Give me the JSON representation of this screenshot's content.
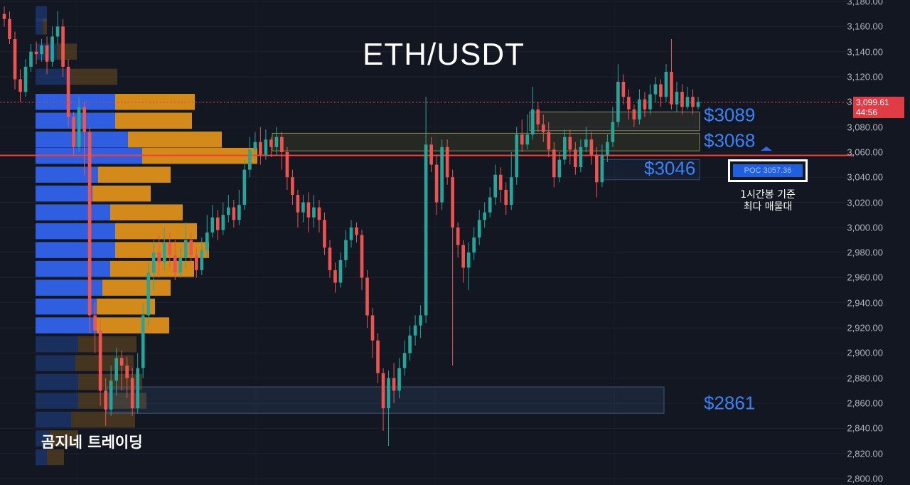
{
  "chart_data": {
    "type": "candlestick",
    "title": "ETH/USDT",
    "y_axis": {
      "ticks": [
        "3,180.00",
        "3,160.00",
        "3,140.00",
        "3,120.00",
        "3,100.00",
        "3,080.00",
        "3,060.00",
        "3,040.00",
        "3,020.00",
        "3,000.00",
        "2,980.00",
        "2,960.00",
        "2,940.00",
        "2,920.00",
        "2,900.00",
        "2,880.00",
        "2,860.00",
        "2,840.00",
        "2,820.00",
        "2,800.00"
      ],
      "range": [
        2800,
        3180
      ]
    },
    "last_price": "3,099.61",
    "countdown": "44:56",
    "poc": {
      "label": "POC",
      "value": "3057.36"
    },
    "levels": [
      {
        "label": "$3089",
        "value": 3089
      },
      {
        "label": "$3068",
        "value": 3068
      },
      {
        "label": "$3046",
        "value": 3046
      },
      {
        "label": "$2861",
        "value": 2861
      }
    ],
    "annotation": "1시간봉 기준\n최다 매물대",
    "watermark": "곰지네 트레이딩",
    "candles": [
      [
        3170,
        3166,
        3176,
        3160
      ],
      [
        3166,
        3150,
        3172,
        3146
      ],
      [
        3150,
        3118,
        3156,
        3110
      ],
      [
        3118,
        3108,
        3126,
        3100
      ],
      [
        3108,
        3128,
        3134,
        3104
      ],
      [
        3128,
        3140,
        3146,
        3124
      ],
      [
        3140,
        3138,
        3148,
        3130
      ],
      [
        3138,
        3145,
        3150,
        3132
      ],
      [
        3145,
        3132,
        3152,
        3122
      ],
      [
        3132,
        3152,
        3160,
        3128
      ],
      [
        3152,
        3160,
        3172,
        3146
      ],
      [
        3160,
        3128,
        3166,
        3120
      ],
      [
        3128,
        3088,
        3134,
        3080
      ],
      [
        3088,
        3064,
        3092,
        3058
      ],
      [
        3064,
        3096,
        3104,
        3060
      ],
      [
        3096,
        3076,
        3100,
        3042
      ],
      [
        3076,
        2930,
        3080,
        2916
      ],
      [
        2930,
        2918,
        2940,
        2900
      ],
      [
        2918,
        2870,
        2926,
        2858
      ],
      [
        2870,
        2855,
        2880,
        2842
      ],
      [
        2855,
        2878,
        2890,
        2850
      ],
      [
        2878,
        2896,
        2904,
        2866
      ],
      [
        2896,
        2890,
        2902,
        2870
      ],
      [
        2890,
        2880,
        2897,
        2864
      ],
      [
        2880,
        2856,
        2888,
        2850
      ],
      [
        2856,
        2888,
        2900,
        2852
      ],
      [
        2888,
        2930,
        2940,
        2880
      ],
      [
        2930,
        2964,
        2972,
        2922
      ],
      [
        2964,
        2980,
        2990,
        2950
      ],
      [
        2980,
        2972,
        2994,
        2960
      ],
      [
        2972,
        2988,
        3000,
        2966
      ],
      [
        2988,
        2978,
        2996,
        2968
      ],
      [
        2978,
        2964,
        2990,
        2958
      ],
      [
        2964,
        2976,
        2984,
        2960
      ],
      [
        2976,
        2990,
        3004,
        2968
      ],
      [
        2990,
        2978,
        2996,
        2970
      ],
      [
        2978,
        2966,
        2984,
        2960
      ],
      [
        2966,
        2982,
        2992,
        2962
      ],
      [
        2982,
        2996,
        3010,
        2976
      ],
      [
        2996,
        3008,
        3018,
        2992
      ],
      [
        3008,
        2998,
        3014,
        2990
      ],
      [
        2998,
        3010,
        3020,
        2994
      ],
      [
        3010,
        3016,
        3026,
        3004
      ],
      [
        3016,
        3006,
        3022,
        3000
      ],
      [
        3006,
        3018,
        3030,
        3002
      ],
      [
        3018,
        3046,
        3054,
        3014
      ],
      [
        3046,
        3062,
        3072,
        3040
      ],
      [
        3062,
        3068,
        3076,
        3054
      ],
      [
        3068,
        3058,
        3080,
        3050
      ],
      [
        3058,
        3070,
        3078,
        3054
      ],
      [
        3070,
        3064,
        3072,
        3056
      ],
      [
        3064,
        3072,
        3080,
        3058
      ],
      [
        3072,
        3060,
        3076,
        3046
      ],
      [
        3060,
        3040,
        3064,
        3030
      ],
      [
        3040,
        3026,
        3046,
        3018
      ],
      [
        3026,
        3012,
        3030,
        3000
      ],
      [
        3012,
        3020,
        3026,
        3004
      ],
      [
        3020,
        3008,
        3028,
        2996
      ],
      [
        3008,
        3016,
        3026,
        3000
      ],
      [
        3016,
        3006,
        3022,
        2996
      ],
      [
        3006,
        2984,
        3012,
        2978
      ],
      [
        2984,
        2966,
        2990,
        2960
      ],
      [
        2966,
        2956,
        2972,
        2948
      ],
      [
        2956,
        2974,
        2980,
        2952
      ],
      [
        2974,
        2990,
        2998,
        2968
      ],
      [
        2990,
        3000,
        3006,
        2984
      ],
      [
        3000,
        2994,
        3004,
        2988
      ],
      [
        2994,
        2960,
        2998,
        2950
      ],
      [
        2960,
        2930,
        2966,
        2920
      ],
      [
        2930,
        2910,
        2936,
        2896
      ],
      [
        2910,
        2884,
        2916,
        2876
      ],
      [
        2884,
        2856,
        2888,
        2838
      ],
      [
        2856,
        2880,
        2886,
        2826
      ],
      [
        2880,
        2870,
        2892,
        2860
      ],
      [
        2870,
        2888,
        2896,
        2864
      ],
      [
        2888,
        2900,
        2910,
        2882
      ],
      [
        2900,
        2914,
        2922,
        2894
      ],
      [
        2914,
        2922,
        2930,
        2906
      ],
      [
        2922,
        2930,
        2938,
        2912
      ],
      [
        2930,
        3066,
        3104,
        2924
      ],
      [
        3066,
        3050,
        3072,
        3044
      ],
      [
        3050,
        3020,
        3058,
        3010
      ],
      [
        3020,
        3064,
        3070,
        3014
      ],
      [
        3064,
        3040,
        3070,
        3034
      ],
      [
        3040,
        3000,
        3046,
        2890
      ],
      [
        3000,
        2986,
        3004,
        2976
      ],
      [
        2986,
        2968,
        2990,
        2956
      ],
      [
        2968,
        2980,
        2988,
        2950
      ],
      [
        2980,
        2992,
        3000,
        2974
      ],
      [
        2992,
        3006,
        3014,
        2986
      ],
      [
        3006,
        3012,
        3020,
        3000
      ],
      [
        3012,
        3024,
        3032,
        3008
      ],
      [
        3024,
        3042,
        3050,
        3018
      ],
      [
        3042,
        3030,
        3048,
        3020
      ],
      [
        3030,
        3018,
        3036,
        3010
      ],
      [
        3018,
        3040,
        3060,
        3014
      ],
      [
        3040,
        3074,
        3080,
        3034
      ],
      [
        3074,
        3066,
        3086,
        3060
      ],
      [
        3066,
        3074,
        3090,
        3062
      ],
      [
        3074,
        3094,
        3112,
        3070
      ],
      [
        3094,
        3082,
        3100,
        3076
      ],
      [
        3082,
        3076,
        3090,
        3068
      ],
      [
        3076,
        3062,
        3084,
        3056
      ],
      [
        3062,
        3040,
        3068,
        3032
      ],
      [
        3040,
        3054,
        3060,
        3036
      ],
      [
        3054,
        3072,
        3078,
        3050
      ],
      [
        3072,
        3062,
        3078,
        3050
      ],
      [
        3062,
        3048,
        3068,
        3042
      ],
      [
        3048,
        3064,
        3070,
        3044
      ],
      [
        3064,
        3070,
        3080,
        3060
      ],
      [
        3070,
        3058,
        3076,
        3050
      ],
      [
        3058,
        3036,
        3064,
        3024
      ],
      [
        3036,
        3058,
        3066,
        3032
      ],
      [
        3058,
        3068,
        3074,
        3052
      ],
      [
        3068,
        3084,
        3096,
        3064
      ],
      [
        3084,
        3116,
        3130,
        3080
      ],
      [
        3116,
        3104,
        3122,
        3098
      ],
      [
        3104,
        3094,
        3110,
        3086
      ],
      [
        3094,
        3086,
        3098,
        3080
      ],
      [
        3086,
        3102,
        3110,
        3082
      ],
      [
        3102,
        3094,
        3108,
        3088
      ],
      [
        3094,
        3106,
        3114,
        3090
      ],
      [
        3106,
        3114,
        3120,
        3100
      ],
      [
        3114,
        3104,
        3118,
        3096
      ],
      [
        3104,
        3124,
        3130,
        3100
      ],
      [
        3124,
        3098,
        3150,
        3094
      ],
      [
        3098,
        3108,
        3116,
        3092
      ],
      [
        3108,
        3096,
        3114,
        3090
      ],
      [
        3096,
        3104,
        3112,
        3094
      ],
      [
        3104,
        3096,
        3110,
        3090
      ],
      [
        3096,
        3100,
        3104,
        3094
      ]
    ]
  }
}
